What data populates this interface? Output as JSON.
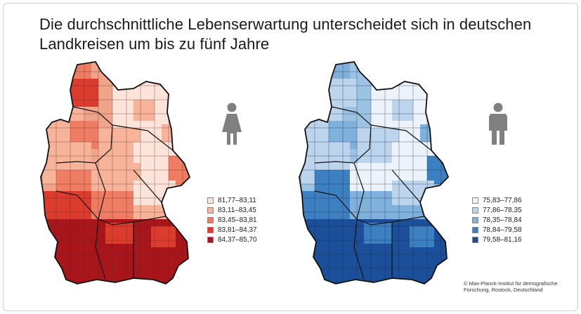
{
  "title": "Die durchschnittliche Lebenserwartung unterscheidet sich in deutschen Landkreisen um bis zu fünf Jahre",
  "women": {
    "icon": "female-person-icon",
    "legend": [
      {
        "label": "81,77–83,11",
        "color": "#fde4da"
      },
      {
        "label": "83,11–83,45",
        "color": "#f7b49b"
      },
      {
        "label": "83,45–83,81",
        "color": "#ef7d63"
      },
      {
        "label": "83,81–84,37",
        "color": "#dc3c2d"
      },
      {
        "label": "84,37–85,70",
        "color": "#a8151b"
      }
    ]
  },
  "men": {
    "icon": "male-person-icon",
    "legend": [
      {
        "label": "75,83–77,86",
        "color": "#edf3fb"
      },
      {
        "label": "77,86–78,35",
        "color": "#bcd5ec"
      },
      {
        "label": "78,35–78,84",
        "color": "#7fb1dc"
      },
      {
        "label": "78,84–79,58",
        "color": "#3d80c1"
      },
      {
        "label": "79,58–81,16",
        "color": "#1c4f99"
      }
    ]
  },
  "credit": "© Max-Planck-Institut für demografische Forschung, Rostock, Deutschland"
}
